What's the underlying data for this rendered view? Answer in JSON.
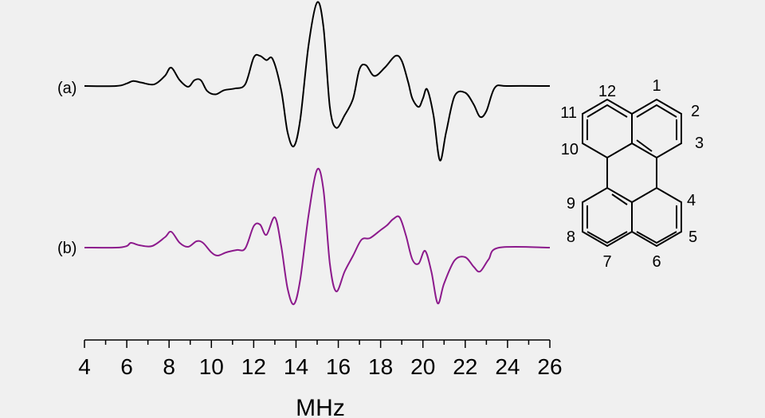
{
  "chart_data": {
    "type": "line",
    "xlabel": "MHz",
    "xlim": [
      4,
      26
    ],
    "xticks": [
      4,
      6,
      8,
      10,
      12,
      14,
      16,
      18,
      20,
      22,
      24,
      26
    ],
    "grid": false,
    "series": [
      {
        "name": "(a)",
        "color": "#000000",
        "points": [
          [
            4,
            0
          ],
          [
            5.5,
            0
          ],
          [
            6,
            0.03
          ],
          [
            6.3,
            0.06
          ],
          [
            6.7,
            0.04
          ],
          [
            7.3,
            0.02
          ],
          [
            7.8,
            0.12
          ],
          [
            8.1,
            0.22
          ],
          [
            8.5,
            0.07
          ],
          [
            8.9,
            -0.01
          ],
          [
            9.2,
            0.07
          ],
          [
            9.5,
            0.07
          ],
          [
            9.8,
            -0.06
          ],
          [
            10.2,
            -0.1
          ],
          [
            10.6,
            -0.05
          ],
          [
            11.1,
            -0.03
          ],
          [
            11.6,
            0.02
          ],
          [
            12,
            0.34
          ],
          [
            12.3,
            0.36
          ],
          [
            12.6,
            0.31
          ],
          [
            12.9,
            0.32
          ],
          [
            13.3,
            -0.05
          ],
          [
            13.6,
            -0.55
          ],
          [
            13.9,
            -0.72
          ],
          [
            14.2,
            -0.4
          ],
          [
            14.6,
            0.5
          ],
          [
            15,
            1.0
          ],
          [
            15.3,
            0.7
          ],
          [
            15.6,
            -0.25
          ],
          [
            15.9,
            -0.5
          ],
          [
            16.3,
            -0.35
          ],
          [
            16.7,
            -0.15
          ],
          [
            17,
            0.2
          ],
          [
            17.3,
            0.25
          ],
          [
            17.7,
            0.12
          ],
          [
            18.2,
            0.22
          ],
          [
            18.7,
            0.36
          ],
          [
            19,
            0.3
          ],
          [
            19.3,
            0.05
          ],
          [
            19.5,
            -0.15
          ],
          [
            19.8,
            -0.25
          ],
          [
            20,
            -0.15
          ],
          [
            20.2,
            -0.04
          ],
          [
            20.5,
            -0.35
          ],
          [
            20.8,
            -0.89
          ],
          [
            21.1,
            -0.55
          ],
          [
            21.5,
            -0.12
          ],
          [
            22,
            -0.08
          ],
          [
            22.4,
            -0.22
          ],
          [
            22.7,
            -0.37
          ],
          [
            23,
            -0.3
          ],
          [
            23.4,
            -0.02
          ],
          [
            24,
            0
          ],
          [
            26,
            0
          ]
        ]
      },
      {
        "name": "(b)",
        "color": "#8c1a8c",
        "points": [
          [
            4,
            0
          ],
          [
            5.5,
            0
          ],
          [
            6,
            0.02
          ],
          [
            6.2,
            0.06
          ],
          [
            6.6,
            0.03
          ],
          [
            7.2,
            0.02
          ],
          [
            7.8,
            0.13
          ],
          [
            8.1,
            0.2
          ],
          [
            8.5,
            0.06
          ],
          [
            8.9,
            0.01
          ],
          [
            9.3,
            0.08
          ],
          [
            9.6,
            0.06
          ],
          [
            10,
            -0.06
          ],
          [
            10.3,
            -0.1
          ],
          [
            10.7,
            -0.06
          ],
          [
            11.2,
            -0.03
          ],
          [
            11.6,
            -0.01
          ],
          [
            12,
            0.27
          ],
          [
            12.3,
            0.29
          ],
          [
            12.6,
            0.16
          ],
          [
            13,
            0.38
          ],
          [
            13.3,
            0.02
          ],
          [
            13.6,
            -0.51
          ],
          [
            13.9,
            -0.71
          ],
          [
            14.2,
            -0.4
          ],
          [
            14.6,
            0.42
          ],
          [
            15,
            0.98
          ],
          [
            15.3,
            0.72
          ],
          [
            15.6,
            -0.2
          ],
          [
            15.9,
            -0.55
          ],
          [
            16.3,
            -0.3
          ],
          [
            16.7,
            -0.1
          ],
          [
            17.1,
            0.1
          ],
          [
            17.5,
            0.12
          ],
          [
            18,
            0.22
          ],
          [
            18.3,
            0.28
          ],
          [
            18.6,
            0.36
          ],
          [
            18.9,
            0.38
          ],
          [
            19.2,
            0.15
          ],
          [
            19.5,
            -0.15
          ],
          [
            19.8,
            -0.2
          ],
          [
            20.1,
            -0.04
          ],
          [
            20.4,
            -0.3
          ],
          [
            20.7,
            -0.7
          ],
          [
            21,
            -0.45
          ],
          [
            21.5,
            -0.16
          ],
          [
            22,
            -0.12
          ],
          [
            22.4,
            -0.24
          ],
          [
            22.7,
            -0.3
          ],
          [
            23.1,
            -0.15
          ],
          [
            23.6,
            0
          ],
          [
            26,
            0
          ]
        ]
      }
    ],
    "annotations": {
      "numbers": [
        "1",
        "2",
        "3",
        "4",
        "5",
        "6",
        "7",
        "8",
        "9",
        "10",
        "11",
        "12"
      ]
    }
  }
}
